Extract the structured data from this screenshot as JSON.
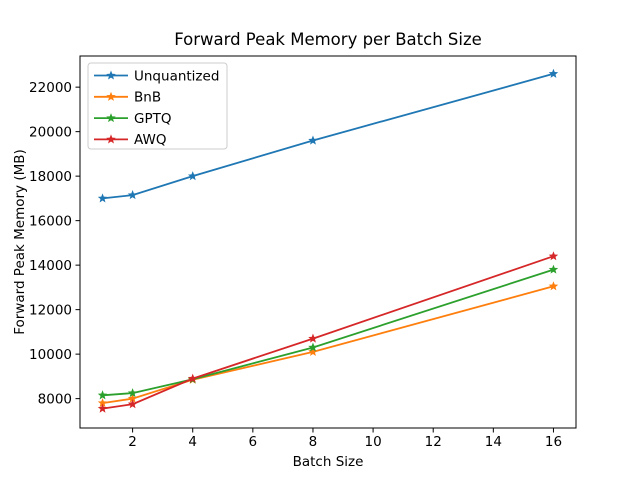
{
  "chart_data": {
    "type": "line",
    "title": "Forward Peak Memory per Batch Size",
    "xlabel": "Batch Size",
    "ylabel": "Forward Peak Memory (MB)",
    "x": [
      1,
      2,
      4,
      8,
      16
    ],
    "series": [
      {
        "name": "Unquantized",
        "color": "#1f77b4",
        "values": [
          17000,
          17150,
          18000,
          19600,
          22600
        ]
      },
      {
        "name": "BnB",
        "color": "#ff7f0e",
        "values": [
          7800,
          8000,
          8850,
          10100,
          13050
        ]
      },
      {
        "name": "GPTQ",
        "color": "#2ca02c",
        "values": [
          8150,
          8250,
          8870,
          10300,
          13800
        ]
      },
      {
        "name": "AWQ",
        "color": "#d62728",
        "values": [
          7550,
          7750,
          8900,
          10700,
          14400
        ]
      }
    ],
    "marker": "star",
    "xticks": [
      2,
      4,
      6,
      8,
      10,
      12,
      14,
      16
    ],
    "yticks": [
      8000,
      10000,
      12000,
      14000,
      16000,
      18000,
      20000,
      22000
    ],
    "xlim": [
      0.25,
      16.75
    ],
    "ylim": [
      6680,
      23400
    ],
    "grid": false,
    "legend_position": "upper left",
    "background_color": "#ffffff",
    "axis_color": "#000000",
    "legend_border_color": "#cccccc"
  }
}
